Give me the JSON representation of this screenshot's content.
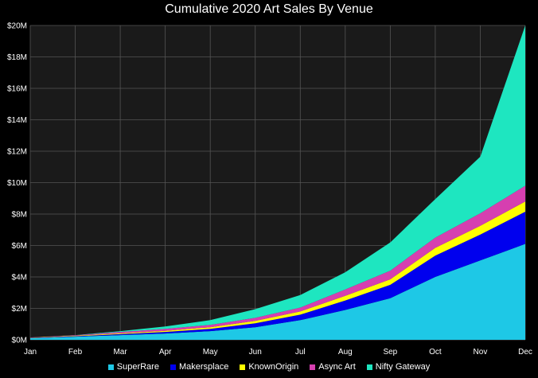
{
  "chart_data": {
    "type": "area",
    "stacked": true,
    "title": "Cumulative 2020 Art Sales By Venue",
    "xlabel": "",
    "ylabel": "",
    "categories": [
      "Jan",
      "Feb",
      "Mar",
      "Apr",
      "May",
      "Jun",
      "Jul",
      "Aug",
      "Sep",
      "Oct",
      "Nov",
      "Dec"
    ],
    "ylim": [
      0,
      20000000
    ],
    "yticks": [
      0,
      2000000,
      4000000,
      6000000,
      8000000,
      10000000,
      12000000,
      14000000,
      16000000,
      18000000,
      20000000
    ],
    "ytick_labels": [
      "$0M",
      "$2M",
      "$4M",
      "$6M",
      "$8M",
      "$10M",
      "$12M",
      "$14M",
      "$16M",
      "$18M",
      "$20M"
    ],
    "grid": true,
    "legend_position": "bottom",
    "background": "#000000",
    "plot_background": "#1a1a1a",
    "series": [
      {
        "name": "SuperRare",
        "color": "#1ec8e6",
        "values": [
          100000,
          200000,
          300000,
          400000,
          550000,
          800000,
          1250000,
          1900000,
          2650000,
          4000000,
          5050000,
          6100000
        ]
      },
      {
        "name": "Makersplace",
        "color": "#0000ee",
        "values": [
          20000,
          30000,
          60000,
          100000,
          150000,
          250000,
          350000,
          600000,
          850000,
          1350000,
          1650000,
          2050000
        ]
      },
      {
        "name": "KnownOrigin",
        "color": "#ffff00",
        "values": [
          20000,
          30000,
          50000,
          70000,
          100000,
          150000,
          200000,
          300000,
          350000,
          500000,
          550000,
          650000
        ]
      },
      {
        "name": "Async Art",
        "color": "#d63fb0",
        "values": [
          10000,
          30000,
          90000,
          130000,
          150000,
          200000,
          250000,
          400000,
          550000,
          650000,
          800000,
          1000000
        ]
      },
      {
        "name": "Nifty Gateway",
        "color": "#1ee6c0",
        "values": [
          0,
          10000,
          50000,
          150000,
          300000,
          550000,
          800000,
          1100000,
          1800000,
          2450000,
          3600000,
          10200000
        ]
      }
    ]
  }
}
